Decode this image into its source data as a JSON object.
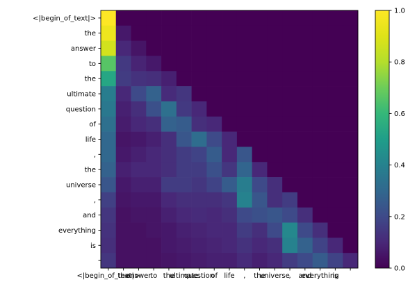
{
  "figure": {
    "background": "#ffffff",
    "colormap_name": "viridis",
    "colormap_stops": [
      [
        0.0,
        "#440154"
      ],
      [
        0.1,
        "#482878"
      ],
      [
        0.2,
        "#3e4a89"
      ],
      [
        0.3,
        "#31688e"
      ],
      [
        0.4,
        "#26828e"
      ],
      [
        0.5,
        "#1f9e89"
      ],
      [
        0.6,
        "#35b779"
      ],
      [
        0.7,
        "#6dcd59"
      ],
      [
        0.8,
        "#b4de2c"
      ],
      [
        0.9,
        "#dfe318"
      ],
      [
        1.0,
        "#fde725"
      ]
    ],
    "axis_color": "#000000",
    "min_color": "#440154",
    "max_color": "#fde725"
  },
  "chart_data": {
    "type": "heatmap",
    "title": "",
    "xlabel": "",
    "ylabel": "",
    "value_range": [
      0.0,
      1.0
    ],
    "grid": false,
    "legend_position": "colorbar-right",
    "x_tick_labels": [
      "<|begin_of_text|>",
      "the",
      "answer",
      "to",
      "the",
      "ultimate",
      "question",
      "of",
      "life",
      ",",
      "the",
      "universe",
      ",",
      "and",
      "everything",
      "is",
      ""
    ],
    "y_tick_labels": [
      "<|begin_of_text|>",
      "the",
      "answer",
      "to",
      "the",
      "ultimate",
      "question",
      "of",
      "life",
      ",",
      "the",
      "universe",
      ",",
      "and",
      "everything",
      "is",
      ""
    ],
    "matrix": [
      [
        1.0,
        0.0,
        0.0,
        0.0,
        0.0,
        0.0,
        0.0,
        0.0,
        0.0,
        0.0,
        0.0,
        0.0,
        0.0,
        0.0,
        0.0,
        0.0,
        0.0
      ],
      [
        0.95,
        0.06,
        0.0,
        0.0,
        0.0,
        0.0,
        0.0,
        0.0,
        0.0,
        0.0,
        0.0,
        0.0,
        0.0,
        0.0,
        0.0,
        0.0,
        0.0
      ],
      [
        0.87,
        0.1,
        0.05,
        0.0,
        0.0,
        0.0,
        0.0,
        0.0,
        0.0,
        0.0,
        0.0,
        0.0,
        0.0,
        0.0,
        0.0,
        0.0,
        0.0
      ],
      [
        0.66,
        0.15,
        0.09,
        0.06,
        0.0,
        0.0,
        0.0,
        0.0,
        0.0,
        0.0,
        0.0,
        0.0,
        0.0,
        0.0,
        0.0,
        0.0,
        0.0
      ],
      [
        0.53,
        0.16,
        0.13,
        0.12,
        0.08,
        0.0,
        0.0,
        0.0,
        0.0,
        0.0,
        0.0,
        0.0,
        0.0,
        0.0,
        0.0,
        0.0,
        0.0
      ],
      [
        0.38,
        0.1,
        0.2,
        0.28,
        0.11,
        0.14,
        0.0,
        0.0,
        0.0,
        0.0,
        0.0,
        0.0,
        0.0,
        0.0,
        0.0,
        0.0,
        0.0
      ],
      [
        0.36,
        0.08,
        0.12,
        0.22,
        0.33,
        0.15,
        0.1,
        0.0,
        0.0,
        0.0,
        0.0,
        0.0,
        0.0,
        0.0,
        0.0,
        0.0,
        0.0
      ],
      [
        0.33,
        0.07,
        0.1,
        0.12,
        0.28,
        0.26,
        0.12,
        0.1,
        0.0,
        0.0,
        0.0,
        0.0,
        0.0,
        0.0,
        0.0,
        0.0,
        0.0
      ],
      [
        0.3,
        0.05,
        0.06,
        0.08,
        0.12,
        0.24,
        0.32,
        0.2,
        0.1,
        0.0,
        0.0,
        0.0,
        0.0,
        0.0,
        0.0,
        0.0,
        0.0
      ],
      [
        0.3,
        0.06,
        0.08,
        0.1,
        0.12,
        0.16,
        0.18,
        0.26,
        0.1,
        0.24,
        0.0,
        0.0,
        0.0,
        0.0,
        0.0,
        0.0,
        0.0
      ],
      [
        0.28,
        0.08,
        0.1,
        0.1,
        0.12,
        0.16,
        0.16,
        0.22,
        0.14,
        0.29,
        0.1,
        0.0,
        0.0,
        0.0,
        0.0,
        0.0,
        0.0
      ],
      [
        0.24,
        0.06,
        0.08,
        0.08,
        0.16,
        0.16,
        0.14,
        0.18,
        0.26,
        0.38,
        0.2,
        0.12,
        0.0,
        0.0,
        0.0,
        0.0,
        0.0
      ],
      [
        0.17,
        0.05,
        0.06,
        0.06,
        0.1,
        0.12,
        0.12,
        0.12,
        0.14,
        0.4,
        0.24,
        0.12,
        0.16,
        0.0,
        0.0,
        0.0,
        0.0
      ],
      [
        0.14,
        0.04,
        0.05,
        0.05,
        0.08,
        0.1,
        0.11,
        0.1,
        0.12,
        0.2,
        0.22,
        0.24,
        0.2,
        0.12,
        0.0,
        0.0,
        0.0
      ],
      [
        0.13,
        0.04,
        0.04,
        0.05,
        0.06,
        0.08,
        0.09,
        0.1,
        0.1,
        0.16,
        0.12,
        0.2,
        0.42,
        0.2,
        0.12,
        0.0,
        0.0
      ],
      [
        0.12,
        0.04,
        0.04,
        0.04,
        0.06,
        0.07,
        0.08,
        0.09,
        0.1,
        0.13,
        0.1,
        0.12,
        0.4,
        0.28,
        0.18,
        0.1,
        0.0
      ],
      [
        0.14,
        0.04,
        0.04,
        0.04,
        0.05,
        0.06,
        0.07,
        0.08,
        0.08,
        0.11,
        0.08,
        0.1,
        0.16,
        0.2,
        0.26,
        0.18,
        0.1
      ]
    ],
    "colorbar": {
      "min": 0.0,
      "max": 1.0,
      "tick_labels": [
        "0.0",
        "0.2",
        "0.4",
        "0.6",
        "0.8",
        "1.0"
      ],
      "tick_values": [
        0.0,
        0.2,
        0.4,
        0.6,
        0.8,
        1.0
      ]
    }
  }
}
